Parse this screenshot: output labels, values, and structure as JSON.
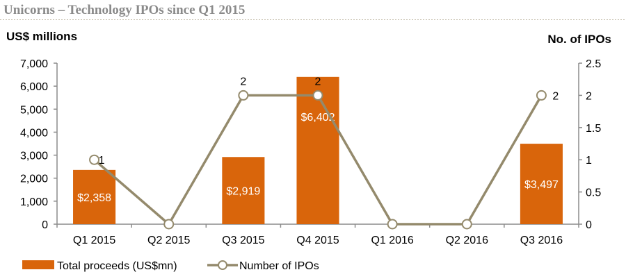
{
  "header": {
    "title": "Unicorns – Technology IPOs since Q1 2015"
  },
  "colors": {
    "bar": "#d9650b",
    "line": "#948a6c",
    "marker_fill": "#ffffff",
    "title": "#8a8a8a",
    "axis": "#8c8c8c",
    "separator": "#b9b09a"
  },
  "chart_data": {
    "type": "bar",
    "categories": [
      "Q1 2015",
      "Q2 2015",
      "Q3 2015",
      "Q4 2015",
      "Q1 2016",
      "Q2 2016",
      "Q3 2016"
    ],
    "ylabel": "US$ millions",
    "y2label": "No. of IPOs",
    "ylim": [
      0,
      7000
    ],
    "y2lim": [
      0,
      2.5
    ],
    "y_ticks": [
      "0",
      "1,000",
      "2,000",
      "3,000",
      "4,000",
      "5,000",
      "6,000",
      "7,000"
    ],
    "y2_ticks": [
      "0",
      "0.5",
      "1",
      "1.5",
      "2",
      "2.5"
    ],
    "grid": false,
    "legend_position": "bottom-left",
    "series": [
      {
        "name": "Total proceeds (US$mn)",
        "type": "bar",
        "axis": "left",
        "values": [
          2358,
          0,
          2919,
          6402,
          0,
          0,
          3497
        ],
        "labels": [
          "$2,358",
          "",
          "$2,919",
          "$6,402",
          "",
          "",
          "$3,497"
        ]
      },
      {
        "name": "Number of IPOs",
        "type": "line",
        "axis": "right",
        "values": [
          1,
          0,
          2,
          2,
          0,
          0,
          2
        ],
        "labels": [
          "1",
          "",
          "2",
          "2",
          "",
          "",
          "2"
        ]
      }
    ]
  }
}
